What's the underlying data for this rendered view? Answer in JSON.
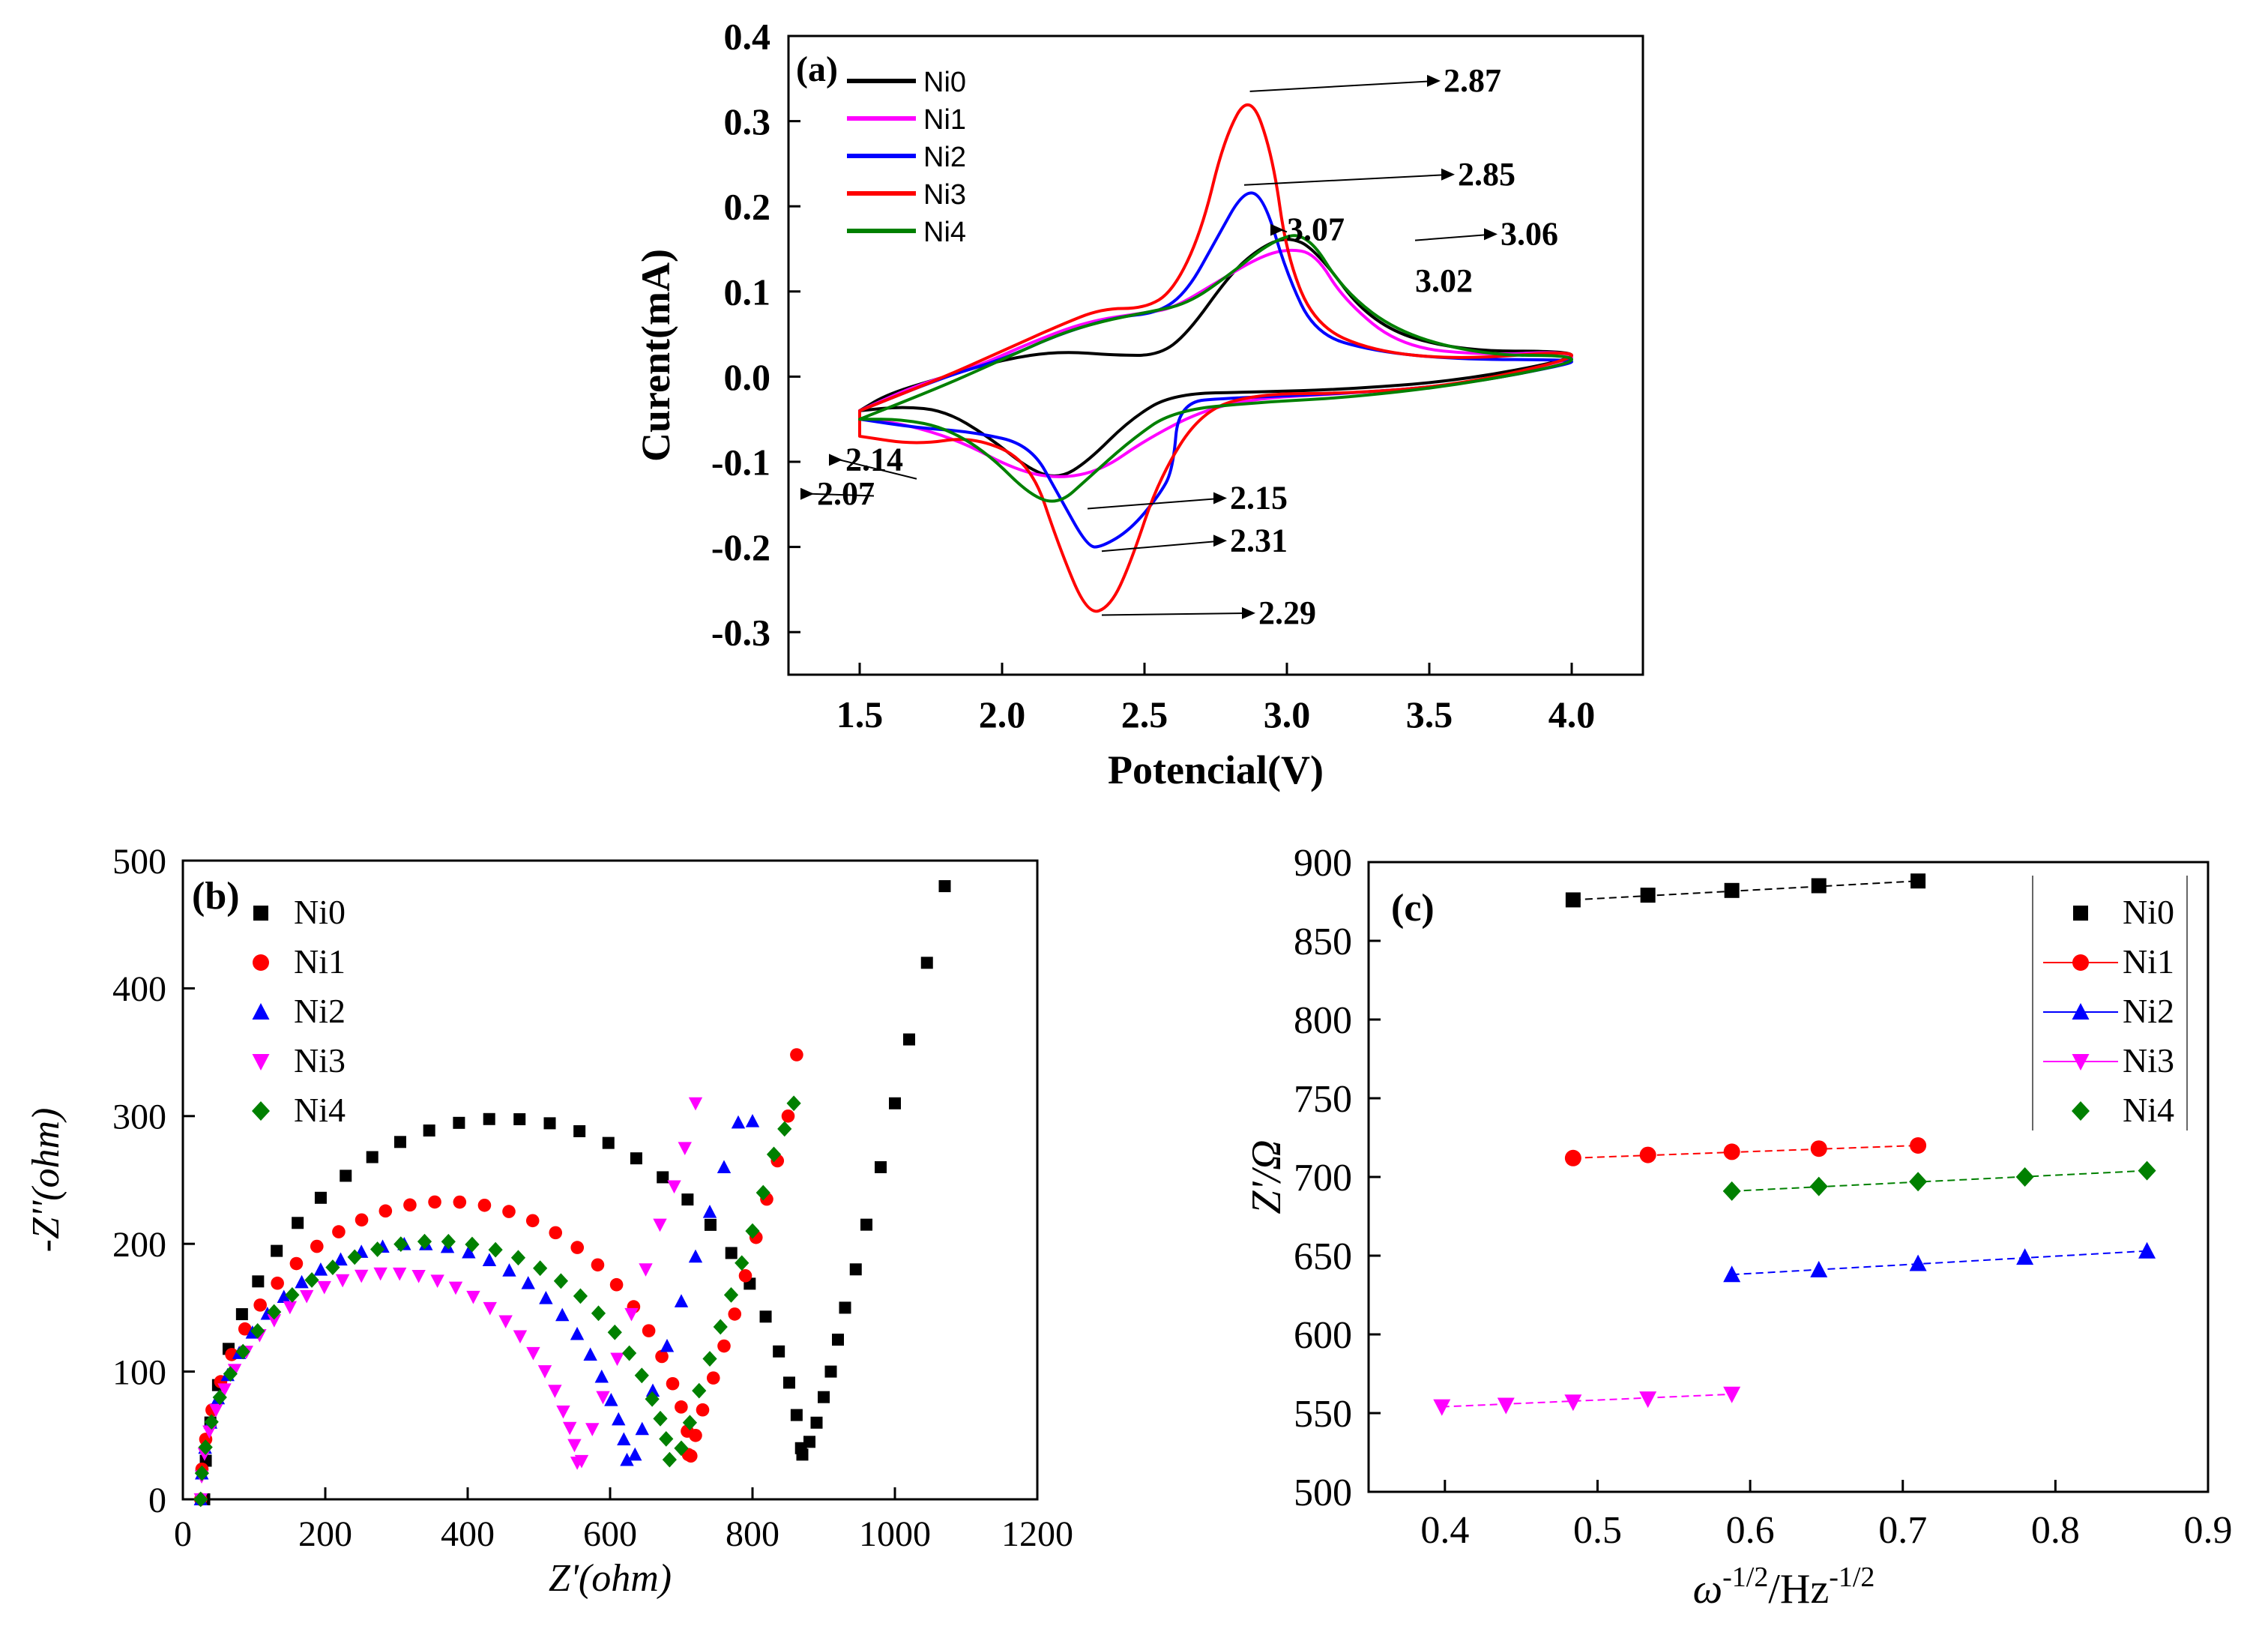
{
  "chart_data": [
    {
      "id": "a",
      "type": "line",
      "panel_label": "(a)",
      "xlabel": "Potencial(V)",
      "ylabel": "Curent(mA)",
      "xlim": [
        1.25,
        4.25
      ],
      "ylim": [
        -0.35,
        0.4
      ],
      "xticks": [
        "1.5",
        "2.0",
        "2.5",
        "3.0",
        "3.5",
        "4.0"
      ],
      "xtick_values": [
        1.5,
        2.0,
        2.5,
        3.0,
        3.5,
        4.0
      ],
      "yticks": [
        "0.4",
        "0.3",
        "0.2",
        "0.1",
        "0.0",
        "-0.1",
        "-0.2",
        "-0.3"
      ],
      "ytick_values": [
        0.4,
        0.3,
        0.2,
        0.1,
        0.0,
        -0.1,
        -0.2,
        -0.3
      ],
      "series": [
        {
          "name": "Ni0",
          "color": "#000000",
          "x": [
            1.5,
            1.6,
            1.8,
            2.0,
            2.2,
            2.4,
            2.55,
            2.65,
            2.8,
            2.9,
            3.0,
            3.1,
            3.3,
            3.6,
            4.0,
            4.0,
            3.6,
            3.2,
            2.9,
            2.6,
            2.45,
            2.3,
            2.2,
            2.1,
            1.95,
            1.8,
            1.65,
            1.5
          ],
          "y": [
            -0.04,
            -0.02,
            0.0,
            0.02,
            0.03,
            0.025,
            0.025,
            0.05,
            0.12,
            0.15,
            0.165,
            0.15,
            0.06,
            0.03,
            0.03,
            0.02,
            -0.005,
            -0.015,
            -0.018,
            -0.02,
            -0.05,
            -0.1,
            -0.12,
            -0.11,
            -0.07,
            -0.04,
            -0.035,
            -0.04
          ]
        },
        {
          "name": "Ni1",
          "color": "#ff00ff",
          "x": [
            1.5,
            1.7,
            1.9,
            2.1,
            2.3,
            2.5,
            2.6,
            2.75,
            2.9,
            3.0,
            3.1,
            3.2,
            3.4,
            3.7,
            4.0,
            4.0,
            3.6,
            3.2,
            2.9,
            2.7,
            2.5,
            2.35,
            2.2,
            2.05,
            1.85,
            1.65,
            1.5
          ],
          "y": [
            -0.04,
            -0.01,
            0.01,
            0.04,
            0.065,
            0.075,
            0.08,
            0.11,
            0.14,
            0.15,
            0.145,
            0.09,
            0.035,
            0.025,
            0.03,
            0.015,
            -0.01,
            -0.02,
            -0.025,
            -0.04,
            -0.075,
            -0.11,
            -0.12,
            -0.11,
            -0.075,
            -0.055,
            -0.05
          ]
        },
        {
          "name": "Ni2",
          "color": "#0000ff",
          "x": [
            1.5,
            1.8,
            2.0,
            2.2,
            2.4,
            2.55,
            2.65,
            2.75,
            2.85,
            2.92,
            3.0,
            3.1,
            3.3,
            3.6,
            4.0,
            4.0,
            3.6,
            3.2,
            2.8,
            2.62,
            2.6,
            2.55,
            2.45,
            2.35,
            2.3,
            2.2,
            2.1,
            1.9,
            1.7,
            1.5
          ],
          "y": [
            -0.04,
            0.0,
            0.02,
            0.05,
            0.07,
            0.075,
            0.1,
            0.16,
            0.22,
            0.21,
            0.12,
            0.05,
            0.03,
            0.02,
            0.02,
            0.015,
            -0.01,
            -0.02,
            -0.025,
            -0.03,
            -0.11,
            -0.14,
            -0.18,
            -0.2,
            -0.2,
            -0.14,
            -0.08,
            -0.065,
            -0.06,
            -0.05
          ]
        },
        {
          "name": "Ni3",
          "color": "#ff0000",
          "x": [
            1.5,
            1.8,
            2.0,
            2.2,
            2.35,
            2.5,
            2.6,
            2.7,
            2.78,
            2.87,
            2.95,
            3.0,
            3.1,
            3.3,
            3.6,
            4.0,
            4.0,
            3.6,
            3.2,
            2.9,
            2.7,
            2.55,
            2.45,
            2.38,
            2.3,
            2.2,
            2.1,
            1.9,
            1.7,
            1.5
          ],
          "y": [
            -0.04,
            0.0,
            0.03,
            0.06,
            0.08,
            0.08,
            0.1,
            0.17,
            0.28,
            0.335,
            0.26,
            0.14,
            0.06,
            0.03,
            0.02,
            0.03,
            0.02,
            -0.01,
            -0.02,
            -0.02,
            -0.04,
            -0.12,
            -0.22,
            -0.27,
            -0.28,
            -0.2,
            -0.1,
            -0.07,
            -0.08,
            -0.07
          ]
        },
        {
          "name": "Ni4",
          "color": "#008000",
          "x": [
            1.5,
            1.8,
            2.0,
            2.2,
            2.35,
            2.5,
            2.65,
            2.8,
            2.95,
            3.07,
            3.2,
            3.4,
            3.7,
            4.0,
            4.0,
            3.6,
            3.2,
            2.9,
            2.6,
            2.45,
            2.3,
            2.2,
            2.1,
            1.95,
            1.8,
            1.65,
            1.5
          ],
          "y": [
            -0.05,
            -0.01,
            0.02,
            0.05,
            0.065,
            0.075,
            0.085,
            0.12,
            0.16,
            0.17,
            0.1,
            0.05,
            0.025,
            0.025,
            0.015,
            -0.01,
            -0.025,
            -0.03,
            -0.04,
            -0.075,
            -0.12,
            -0.15,
            -0.14,
            -0.09,
            -0.06,
            -0.05,
            -0.05
          ]
        }
      ],
      "annotations": [
        {
          "text": "2.87",
          "x": 3.55,
          "y": 0.335
        },
        {
          "text": "2.85",
          "x": 3.6,
          "y": 0.225
        },
        {
          "text": "3.07",
          "x": 3.0,
          "y": 0.16
        },
        {
          "text": "3.06",
          "x": 3.75,
          "y": 0.155
        },
        {
          "text": "3.02",
          "x": 3.45,
          "y": 0.1
        },
        {
          "text": "2.14",
          "x": 1.45,
          "y": -0.11
        },
        {
          "text": "2.07",
          "x": 1.35,
          "y": -0.15
        },
        {
          "text": "2.15",
          "x": 2.8,
          "y": -0.155
        },
        {
          "text": "2.31",
          "x": 2.8,
          "y": -0.205
        },
        {
          "text": "2.29",
          "x": 2.9,
          "y": -0.29
        }
      ]
    },
    {
      "id": "b",
      "type": "scatter",
      "panel_label": "(b)",
      "xlabel": "Z'(ohm)",
      "ylabel": "-Z''(ohm)",
      "xlim": [
        0,
        1200
      ],
      "ylim": [
        0,
        500
      ],
      "xticks": [
        "0",
        "200",
        "400",
        "600",
        "800",
        "1000",
        "1200"
      ],
      "xtick_values": [
        0,
        200,
        400,
        600,
        800,
        1000,
        1200
      ],
      "yticks": [
        "0",
        "100",
        "200",
        "300",
        "400",
        "500"
      ],
      "ytick_values": [
        0,
        100,
        200,
        300,
        400,
        500
      ],
      "series": [
        {
          "name": "Ni0",
          "color": "#000000",
          "marker": "square",
          "R0": 30,
          "R1": 840,
          "peak": 298,
          "tail_x": [
            870,
            880,
            890,
            900,
            910,
            920,
            930,
            945,
            960,
            980,
            1000,
            1020,
            1045,
            1070
          ],
          "tail_y": [
            35,
            45,
            60,
            80,
            100,
            125,
            150,
            180,
            215,
            260,
            310,
            360,
            420,
            480
          ]
        },
        {
          "name": "Ni1",
          "color": "#ff0000",
          "marker": "circle",
          "R0": 25,
          "R1": 690,
          "peak": 233,
          "tail_x": [
            710,
            720,
            730,
            745,
            760,
            775,
            790,
            805,
            820,
            835,
            850,
            862
          ],
          "tail_y": [
            35,
            50,
            70,
            95,
            120,
            145,
            175,
            205,
            235,
            265,
            300,
            348
          ]
        },
        {
          "name": "Ni2",
          "color": "#0000ff",
          "marker": "triangle-up",
          "R0": 25,
          "R1": 600,
          "peak": 200,
          "tail_x": [
            635,
            645,
            660,
            680,
            700,
            720,
            740,
            760,
            780,
            800
          ],
          "tail_y": [
            35,
            55,
            85,
            120,
            155,
            190,
            225,
            260,
            295,
            296
          ]
        },
        {
          "name": "Ni3",
          "color": "#ff00ff",
          "marker": "triangle-down",
          "R0": 25,
          "R1": 530,
          "peak": 177,
          "tail_x": [
            560,
            575,
            590,
            610,
            630,
            650,
            670,
            690,
            705,
            720
          ],
          "tail_y": [
            30,
            55,
            80,
            110,
            145,
            180,
            215,
            245,
            275,
            310
          ]
        },
        {
          "name": "Ni4",
          "color": "#008000",
          "marker": "diamond",
          "R0": 25,
          "R1": 660,
          "peak": 202,
          "tail_x": [
            700,
            712,
            725,
            740,
            755,
            770,
            785,
            800,
            815,
            830,
            845,
            858
          ],
          "tail_y": [
            40,
            60,
            85,
            110,
            135,
            160,
            185,
            210,
            240,
            270,
            290,
            310
          ]
        }
      ]
    },
    {
      "id": "c",
      "type": "scatter",
      "panel_label": "(c)",
      "xlabel": "ω-1/2/Hz-1/2",
      "xlabel_parts": [
        "ω",
        "-1/2",
        "/Hz",
        "-1/2"
      ],
      "ylabel": "Z'/Ω",
      "xlim": [
        0.35,
        0.9
      ],
      "ylim": [
        500,
        900
      ],
      "xticks": [
        "0.4",
        "0.5",
        "0.6",
        "0.7",
        "0.8",
        "0.9"
      ],
      "xtick_values": [
        0.4,
        0.5,
        0.6,
        0.7,
        0.8,
        0.9
      ],
      "yticks": [
        "900",
        "850",
        "800",
        "750",
        "700",
        "650",
        "600",
        "550",
        "500"
      ],
      "ytick_values": [
        900,
        850,
        800,
        750,
        700,
        650,
        600,
        550,
        500
      ],
      "series": [
        {
          "name": "Ni0",
          "color": "#000000",
          "marker": "square",
          "x": [
            0.484,
            0.533,
            0.588,
            0.645,
            0.71
          ],
          "y": [
            876,
            879,
            882,
            885,
            888
          ]
        },
        {
          "name": "Ni1",
          "color": "#ff0000",
          "marker": "circle",
          "x": [
            0.484,
            0.533,
            0.588,
            0.645,
            0.71
          ],
          "y": [
            712,
            714,
            716,
            718,
            720
          ]
        },
        {
          "name": "Ni2",
          "color": "#0000ff",
          "marker": "triangle-up",
          "x": [
            0.588,
            0.645,
            0.71,
            0.78,
            0.86
          ],
          "y": [
            638,
            641,
            645,
            649,
            653
          ]
        },
        {
          "name": "Ni3",
          "color": "#ff00ff",
          "marker": "triangle-down",
          "x": [
            0.398,
            0.44,
            0.484,
            0.533,
            0.588
          ],
          "y": [
            554,
            555,
            557,
            559,
            562
          ]
        },
        {
          "name": "Ni4",
          "color": "#008000",
          "marker": "diamond",
          "x": [
            0.588,
            0.645,
            0.71,
            0.78,
            0.86
          ],
          "y": [
            691,
            694,
            697,
            700,
            704
          ]
        }
      ]
    }
  ]
}
